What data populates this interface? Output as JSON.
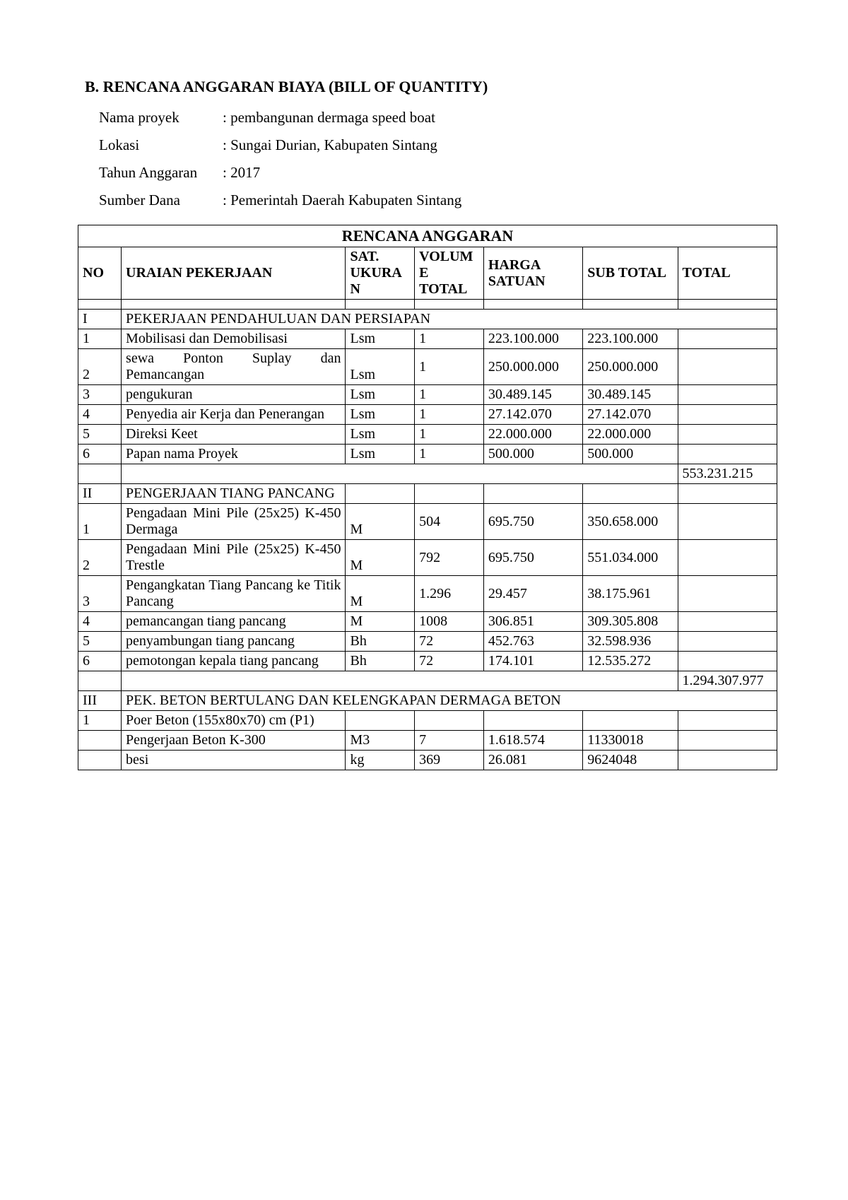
{
  "title": "B. RENCANA ANGGARAN BIAYA (BILL OF QUANTITY)",
  "meta": {
    "nama_proyek_label": "Nama proyek",
    "nama_proyek": "pembangunan dermaga speed boat",
    "lokasi_label": "Lokasi",
    "lokasi": "Sungai Durian, Kabupaten Sintang",
    "tahun_label": "Tahun Anggaran",
    "tahun": "2017",
    "sumber_label": "Sumber Dana",
    "sumber": "Pemerintah Daerah Kabupaten Sintang"
  },
  "table": {
    "heading": "RENCANA ANGGARAN",
    "headers": {
      "no": "NO",
      "uraian": "URAIAN PEKERJAAN",
      "sat": "SAT. UKURAN",
      "volume": "VOLUME TOTAL",
      "harga": "HARGA SATUAN",
      "sub": "SUB TOTAL",
      "total": "TOTAL"
    },
    "section1": {
      "no": "I",
      "title": "PEKERJAAN PENDAHULUAN DAN PERSIAPAN",
      "rows": [
        {
          "no": "1",
          "desc": "Mobilisasi dan Demobilisasi",
          "unit": "Lsm",
          "vol": "1",
          "harga": "223.100.000",
          "sub": "223.100.000",
          "total": ""
        },
        {
          "no": "2",
          "desc": "sewa Ponton Suplay dan Pemancangan",
          "unit": "Lsm",
          "vol": "1",
          "harga": "250.000.000",
          "sub": "250.000.000",
          "total": ""
        },
        {
          "no": "3",
          "desc": "pengukuran",
          "unit": "Lsm",
          "vol": "1",
          "harga": "30.489.145",
          "sub": "30.489.145",
          "total": ""
        },
        {
          "no": "4",
          "desc": "Penyedia air Kerja dan Penerangan",
          "unit": "Lsm",
          "vol": "1",
          "harga": "27.142.070",
          "sub": "27.142.070",
          "total": ""
        },
        {
          "no": "5",
          "desc": "Direksi Keet",
          "unit": "Lsm",
          "vol": "1",
          "harga": "22.000.000",
          "sub": "22.000.000",
          "total": ""
        },
        {
          "no": "6",
          "desc": "Papan nama Proyek",
          "unit": "Lsm",
          "vol": "1",
          "harga": "500.000",
          "sub": "500.000",
          "total": ""
        }
      ],
      "subtotal": "553.231.215"
    },
    "section2": {
      "no": "II",
      "title": "PENGERJAAN TIANG PANCANG",
      "rows": [
        {
          "no": "1",
          "desc": "Pengadaan Mini Pile (25x25) K-450 Dermaga",
          "unit": "M",
          "vol": "504",
          "harga": "695.750",
          "sub": "350.658.000",
          "total": ""
        },
        {
          "no": "2",
          "desc": "Pengadaan Mini Pile (25x25) K-450 Trestle",
          "unit": "M",
          "vol": "792",
          "harga": "695.750",
          "sub": "551.034.000",
          "total": ""
        },
        {
          "no": "3",
          "desc": "Pengangkatan Tiang Pancang ke Titik Pancang",
          "unit": "M",
          "vol": "1.296",
          "harga": "29.457",
          "sub": "38.175.961",
          "total": ""
        },
        {
          "no": "4",
          "desc": "pemancangan tiang pancang",
          "unit": "M",
          "vol": "1008",
          "harga": "306.851",
          "sub": "309.305.808",
          "total": ""
        },
        {
          "no": "5",
          "desc": "penyambungan tiang pancang",
          "unit": "Bh",
          "vol": "72",
          "harga": "452.763",
          "sub": "32.598.936",
          "total": ""
        },
        {
          "no": "6",
          "desc": "pemotongan kepala tiang pancang",
          "unit": "Bh",
          "vol": "72",
          "harga": "174.101",
          "sub": "12.535.272",
          "total": ""
        }
      ],
      "subtotal": "1.294.307.977"
    },
    "section3": {
      "no": "III",
      "title": "PEK. BETON BERTULANG DAN KELENGKAPAN DERMAGA BETON",
      "rows": [
        {
          "no": "1",
          "desc": "Poer Beton (155x80x70) cm (P1)",
          "unit": "",
          "vol": "",
          "harga": "",
          "sub": "",
          "total": ""
        },
        {
          "no": "",
          "desc": "Pengerjaan Beton K-300",
          "unit": "M3",
          "vol": "7",
          "harga": "1.618.574",
          "sub": "11330018",
          "total": ""
        },
        {
          "no": "",
          "desc": "besi",
          "unit": "kg",
          "vol": "369",
          "harga": "26.081",
          "sub": "9624048",
          "total": ""
        }
      ]
    }
  }
}
